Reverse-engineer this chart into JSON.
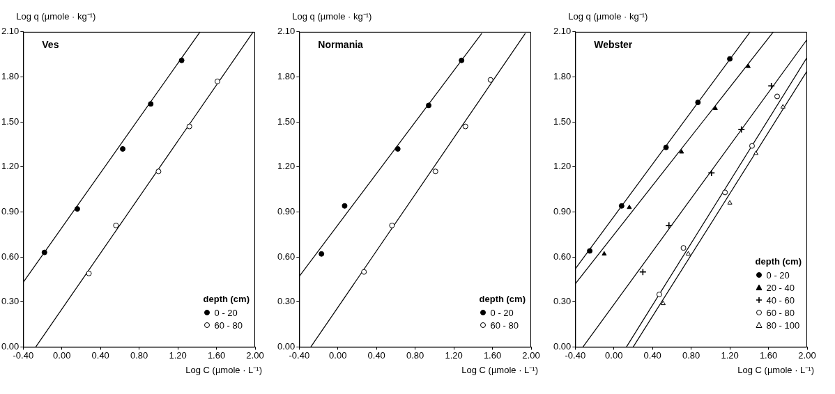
{
  "chart_data": [
    {
      "type": "scatter",
      "title": "Ves",
      "xlabel": "Log C (µmole · L⁻¹)",
      "ylabel": "Log q (µmole · kg⁻¹)",
      "legend_title": "depth (cm)",
      "legend": "bottom right",
      "grid": false,
      "xlim": [
        -0.4,
        2.0
      ],
      "xticks": [
        {
          "value": -0.4,
          "label": "-0.40"
        },
        {
          "value": 0,
          "label": "0.00"
        },
        {
          "value": 0.4,
          "label": "0.40"
        },
        {
          "value": 0.8,
          "label": "0.80"
        },
        {
          "value": 1.2,
          "label": "1.20"
        },
        {
          "value": 1.6,
          "label": "1.60"
        },
        {
          "value": 2.0,
          "label": "2.00"
        }
      ],
      "ylim": [
        0,
        2.1
      ],
      "yticks": [
        {
          "value": 0,
          "label": "0.00"
        },
        {
          "value": 0.3,
          "label": "0.30"
        },
        {
          "value": 0.6,
          "label": "0.60"
        },
        {
          "value": 0.9,
          "label": "0.90"
        },
        {
          "value": 1.2,
          "label": "1.20"
        },
        {
          "value": 1.5,
          "label": "1.50"
        },
        {
          "value": 1.8,
          "label": "1.80"
        },
        {
          "value": 2.1,
          "label": "2.10"
        }
      ],
      "series": [
        {
          "name": "0 - 20",
          "color": "#000000",
          "marker": "circle",
          "x": [
            -0.18,
            0.16,
            0.63,
            0.92,
            1.24
          ],
          "values": [
            0.63,
            0.92,
            1.32,
            1.62,
            1.91
          ]
        },
        {
          "name": "60 - 80",
          "color": "#ffffff",
          "marker": "circle",
          "x": [
            0.28,
            0.56,
            1.0,
            1.32,
            1.61
          ],
          "values": [
            0.49,
            0.81,
            1.17,
            1.47,
            1.77
          ]
        },
        {
          "type": "line",
          "color": "#000000",
          "marker": "none",
          "x": [
            -0.4,
            1.43
          ],
          "values": [
            0.43,
            2.1
          ]
        },
        {
          "type": "line",
          "color": "#000000",
          "marker": "none",
          "x": [
            -0.27,
            1.98
          ],
          "values": [
            0,
            2.1
          ]
        }
      ]
    },
    {
      "type": "scatter",
      "title": "Normania",
      "xlabel": "Log C (µmole · L⁻¹)",
      "ylabel": "Log q (µmole · kg⁻¹)",
      "legend_title": "depth (cm)",
      "legend": "bottom right",
      "grid": false,
      "xlim": [
        -0.4,
        2.0
      ],
      "xticks": [
        {
          "value": -0.4,
          "label": "-0.40"
        },
        {
          "value": 0,
          "label": "0.00"
        },
        {
          "value": 0.4,
          "label": "0.40"
        },
        {
          "value": 0.8,
          "label": "0.80"
        },
        {
          "value": 1.2,
          "label": "1.20"
        },
        {
          "value": 1.6,
          "label": "1.60"
        },
        {
          "value": 2.0,
          "label": "2.00"
        }
      ],
      "ylim": [
        0,
        2.1
      ],
      "yticks": [
        {
          "value": 0,
          "label": "0.00"
        },
        {
          "value": 0.3,
          "label": "0.30"
        },
        {
          "value": 0.6,
          "label": "0.60"
        },
        {
          "value": 0.9,
          "label": "0.90"
        },
        {
          "value": 1.2,
          "label": "1.20"
        },
        {
          "value": 1.5,
          "label": "1.50"
        },
        {
          "value": 1.8,
          "label": "1.80"
        },
        {
          "value": 2.1,
          "label": "2.10"
        }
      ],
      "series": [
        {
          "name": "0 - 20",
          "color": "#000000",
          "marker": "circle",
          "x": [
            -0.17,
            0.07,
            0.62,
            0.94,
            1.28
          ],
          "values": [
            0.62,
            0.94,
            1.32,
            1.61,
            1.91
          ]
        },
        {
          "name": "60 - 80",
          "color": "#ffffff",
          "marker": "circle",
          "x": [
            0.27,
            0.56,
            1.01,
            1.32,
            1.58
          ],
          "values": [
            0.5,
            0.81,
            1.17,
            1.47,
            1.78
          ]
        },
        {
          "type": "line",
          "color": "#000000",
          "marker": "none",
          "x": [
            -0.4,
            1.49
          ],
          "values": [
            0.47,
            2.09
          ]
        },
        {
          "type": "line",
          "color": "#000000",
          "marker": "none",
          "x": [
            -0.28,
            1.94
          ],
          "values": [
            0,
            2.09
          ]
        }
      ]
    },
    {
      "type": "scatter",
      "title": "Webster",
      "xlabel": "Log C (µmole · L⁻¹)",
      "ylabel": "Log q (µmole · kg⁻¹)",
      "legend_title": "depth (cm)",
      "legend": "bottom right",
      "grid": false,
      "xlim": [
        -0.4,
        2.0
      ],
      "xticks": [
        {
          "value": -0.4,
          "label": "-0.40"
        },
        {
          "value": 0,
          "label": "0.00"
        },
        {
          "value": 0.4,
          "label": "0.40"
        },
        {
          "value": 0.8,
          "label": "0.80"
        },
        {
          "value": 1.2,
          "label": "1.20"
        },
        {
          "value": 1.6,
          "label": "1.60"
        },
        {
          "value": 2.0,
          "label": "2.00"
        }
      ],
      "ylim": [
        0,
        2.1
      ],
      "yticks": [
        {
          "value": 0,
          "label": "0.00"
        },
        {
          "value": 0.3,
          "label": "0.30"
        },
        {
          "value": 0.6,
          "label": "0.60"
        },
        {
          "value": 0.9,
          "label": "0.90"
        },
        {
          "value": 1.2,
          "label": "1.20"
        },
        {
          "value": 1.5,
          "label": "1.50"
        },
        {
          "value": 1.8,
          "label": "1.80"
        },
        {
          "value": 2.1,
          "label": "2.10"
        }
      ],
      "series": [
        {
          "name": "0 - 20",
          "color": "#000000",
          "marker": "circle",
          "x": [
            -0.25,
            0.08,
            0.54,
            0.87,
            1.2
          ],
          "values": [
            0.64,
            0.94,
            1.33,
            1.63,
            1.92
          ]
        },
        {
          "name": "20 - 40",
          "color": "#000000",
          "marker": "triangle",
          "x": [
            -0.1,
            0.16,
            0.7,
            1.05,
            1.39
          ],
          "values": [
            0.62,
            0.93,
            1.3,
            1.59,
            1.87
          ]
        },
        {
          "name": "40 - 60",
          "color": "#000000",
          "marker": "cross",
          "x": [
            0.3,
            0.57,
            1.01,
            1.32,
            1.63
          ],
          "values": [
            0.5,
            0.81,
            1.16,
            1.45,
            1.74
          ]
        },
        {
          "name": "60 - 80",
          "color": "#ffffff",
          "marker": "circle",
          "x": [
            0.47,
            0.72,
            1.15,
            1.43,
            1.69
          ],
          "values": [
            0.35,
            0.66,
            1.03,
            1.34,
            1.67
          ]
        },
        {
          "name": "80 - 100",
          "color": "#ffffff",
          "marker": "triangle",
          "x": [
            0.51,
            0.77,
            1.2,
            1.47,
            1.75
          ],
          "values": [
            0.29,
            0.62,
            0.96,
            1.29,
            1.6
          ]
        },
        {
          "type": "line",
          "color": "#000000",
          "marker": "none",
          "x": [
            -0.4,
            1.41
          ],
          "values": [
            0.52,
            2.1
          ]
        },
        {
          "type": "line",
          "color": "#000000",
          "marker": "none",
          "x": [
            -0.4,
            1.65
          ],
          "values": [
            0.42,
            2.1
          ]
        },
        {
          "type": "line",
          "color": "#000000",
          "marker": "none",
          "x": [
            -0.32,
            2.0
          ],
          "values": [
            0,
            2.05
          ]
        },
        {
          "type": "line",
          "color": "#000000",
          "marker": "none",
          "x": [
            0.13,
            2.0
          ],
          "values": [
            0,
            1.93
          ]
        },
        {
          "type": "line",
          "color": "#000000",
          "marker": "none",
          "x": [
            0.2,
            2.0
          ],
          "values": [
            0,
            1.84
          ]
        }
      ]
    }
  ]
}
